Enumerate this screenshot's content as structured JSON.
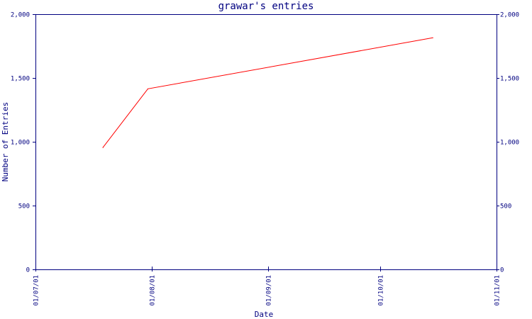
{
  "chart_data": {
    "type": "line",
    "title": "grawar's entries",
    "xlabel": "Date",
    "ylabel": "Number of Entries",
    "x_axis_type": "date",
    "x_ticks": [
      "01/07/01",
      "01/08/01",
      "01/09/01",
      "01/10/01",
      "01/11/01"
    ],
    "y_ticks": [
      "0",
      "500",
      "1,000",
      "1,500",
      "2,000"
    ],
    "y_ticks_right": [
      "0",
      "500",
      "1,000",
      "1,500",
      "2,000"
    ],
    "xlim": [
      "2001-07-01",
      "2001-11-01"
    ],
    "ylim": [
      0,
      2000
    ],
    "grid": false,
    "series": [
      {
        "color": "#ff0000",
        "x": [
          "2001-07-19",
          "2001-07-31",
          "2001-10-15"
        ],
        "y": [
          955,
          1415,
          1815
        ]
      }
    ],
    "colors": {
      "axis": "#000080",
      "line": "#ff0000",
      "background": "#ffffff"
    }
  }
}
